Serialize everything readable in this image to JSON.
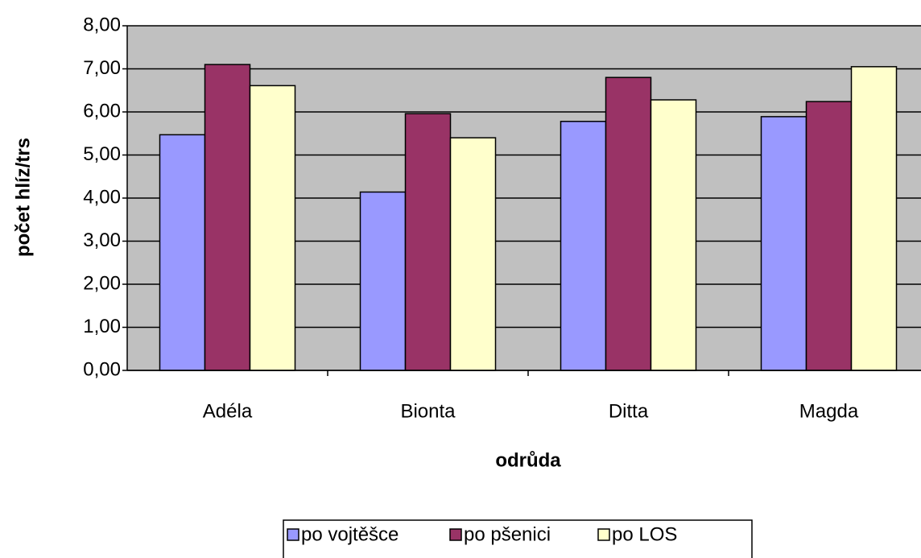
{
  "chart_data": {
    "type": "bar",
    "categories": [
      "Adéla",
      "Bionta",
      "Ditta",
      "Magda"
    ],
    "series": [
      {
        "name": "po vojtěšce",
        "color": "#9999ff",
        "values": [
          5.47,
          4.14,
          5.78,
          5.89
        ]
      },
      {
        "name": "po pšenici",
        "color": "#993366",
        "values": [
          7.1,
          5.96,
          6.8,
          6.24
        ]
      },
      {
        "name": "po LOS",
        "color": "#ffffcc",
        "values": [
          6.61,
          5.4,
          6.28,
          7.05
        ]
      }
    ],
    "xlabel": "odrůda",
    "ylabel": "počet hlíz/trs",
    "ylim": [
      0,
      8
    ],
    "yticks": [
      {
        "value": 0,
        "label": "0,00"
      },
      {
        "value": 1,
        "label": "1,00"
      },
      {
        "value": 2,
        "label": "2,00"
      },
      {
        "value": 3,
        "label": "3,00"
      },
      {
        "value": 4,
        "label": "4,00"
      },
      {
        "value": 5,
        "label": "5,00"
      },
      {
        "value": 6,
        "label": "6,00"
      },
      {
        "value": 7,
        "label": "7,00"
      },
      {
        "value": 8,
        "label": "8,00"
      }
    ],
    "grid": true,
    "legend": "bottom"
  }
}
